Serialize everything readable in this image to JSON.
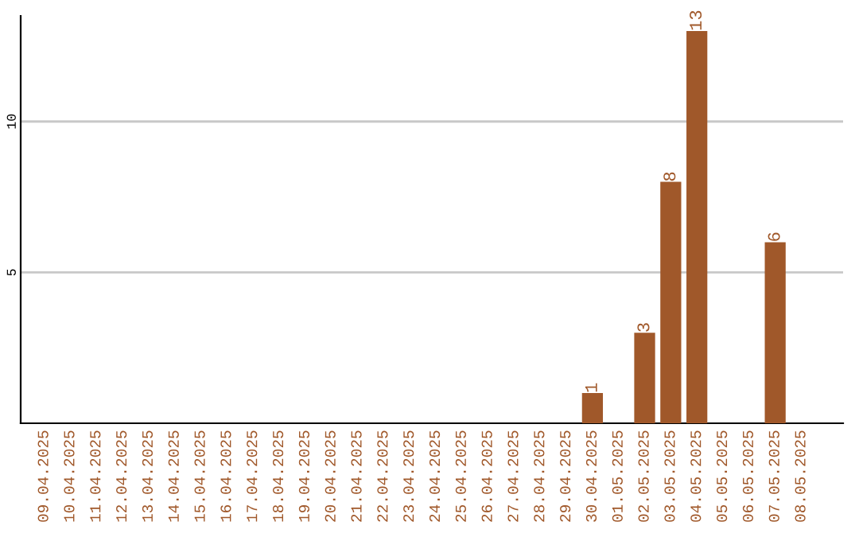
{
  "chart_data": {
    "type": "bar",
    "categories": [
      "09.04.2025",
      "10.04.2025",
      "11.04.2025",
      "12.04.2025",
      "13.04.2025",
      "14.04.2025",
      "15.04.2025",
      "16.04.2025",
      "17.04.2025",
      "18.04.2025",
      "19.04.2025",
      "20.04.2025",
      "21.04.2025",
      "22.04.2025",
      "23.04.2025",
      "24.04.2025",
      "25.04.2025",
      "26.04.2025",
      "27.04.2025",
      "28.04.2025",
      "29.04.2025",
      "30.04.2025",
      "01.05.2025",
      "02.05.2025",
      "03.05.2025",
      "04.05.2025",
      "05.05.2025",
      "06.05.2025",
      "07.05.2025",
      "08.05.2025"
    ],
    "values": [
      0,
      0,
      0,
      0,
      0,
      0,
      0,
      0,
      0,
      0,
      0,
      0,
      0,
      0,
      0,
      0,
      0,
      0,
      0,
      0,
      0,
      1,
      0,
      3,
      8,
      13,
      0,
      0,
      6,
      0
    ],
    "value_labels": [
      null,
      null,
      null,
      null,
      null,
      null,
      null,
      null,
      null,
      null,
      null,
      null,
      null,
      null,
      null,
      null,
      null,
      null,
      null,
      null,
      null,
      "1",
      null,
      "3",
      "8",
      "13",
      null,
      null,
      "6",
      null
    ],
    "color": "#a0582a",
    "ylim": [
      0,
      13.5
    ],
    "yticks": [
      5,
      10
    ],
    "grid": "y"
  }
}
